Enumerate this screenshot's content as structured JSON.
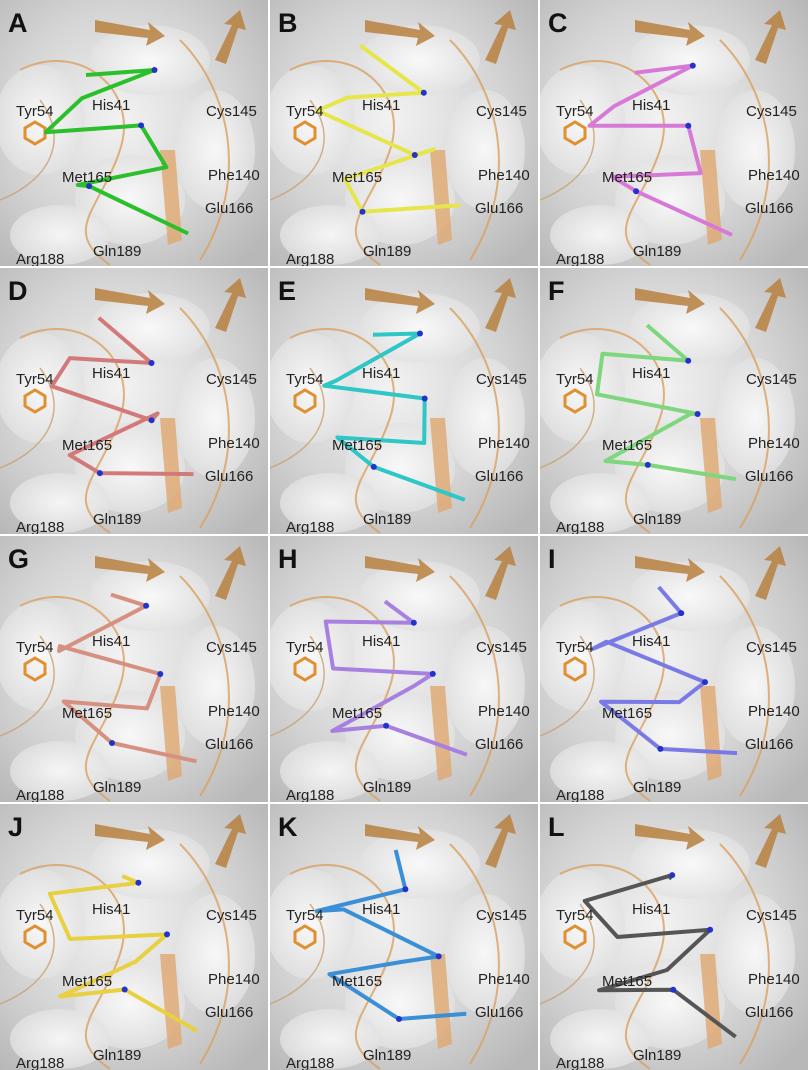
{
  "panels": [
    {
      "label": "A",
      "residues": [
        "Tyr54",
        "His41",
        "Cys145",
        "Phe140",
        "Met165",
        "Glu166",
        "Arg188",
        "Gln189"
      ]
    },
    {
      "label": "B",
      "residues": [
        "Tyr54",
        "His41",
        "Cys145",
        "Phe140",
        "Met165",
        "Glu166",
        "Arg188",
        "Gln189"
      ]
    },
    {
      "label": "C",
      "residues": [
        "Tyr54",
        "His41",
        "Cys145",
        "Phe140",
        "Met165",
        "Glu166",
        "Arg188",
        "Gln189"
      ]
    },
    {
      "label": "D",
      "residues": [
        "Tyr54",
        "His41",
        "Cys145",
        "Phe140",
        "Met165",
        "Glu166",
        "Arg188",
        "Gln189"
      ]
    },
    {
      "label": "E",
      "residues": [
        "Tyr54",
        "His41",
        "Cys145",
        "Phe140",
        "Met165",
        "Glu166",
        "Arg188",
        "Gln189"
      ]
    },
    {
      "label": "F",
      "residues": [
        "Tyr54",
        "His41",
        "Cys145",
        "Phe140",
        "Met165",
        "Glu166",
        "Arg188",
        "Gln189"
      ]
    },
    {
      "label": "G",
      "residues": [
        "Tyr54",
        "His41",
        "Cys145",
        "Phe140",
        "Met165",
        "Glu166",
        "Arg188",
        "Gln189"
      ]
    },
    {
      "label": "H",
      "residues": [
        "Tyr54",
        "His41",
        "Cys145",
        "Phe140",
        "Met165",
        "Glu166",
        "Arg188",
        "Gln189"
      ]
    },
    {
      "label": "I",
      "residues": [
        "Tyr54",
        "His41",
        "Cys145",
        "Phe140",
        "Met165",
        "Glu166",
        "Arg188",
        "Gln189"
      ]
    },
    {
      "label": "J",
      "residues": [
        "Tyr54",
        "His41",
        "Cys145",
        "Phe140",
        "Met165",
        "Glu166",
        "Arg188",
        "Gln189"
      ]
    },
    {
      "label": "K",
      "residues": [
        "Tyr54",
        "His41",
        "Cys145",
        "Phe140",
        "Met165",
        "Glu166",
        "Arg188",
        "Gln189"
      ]
    },
    {
      "label": "L",
      "residues": [
        "Tyr54",
        "His41",
        "Cys145",
        "Phe140",
        "Met165",
        "Glu166",
        "Arg188",
        "Gln189"
      ]
    }
  ]
}
